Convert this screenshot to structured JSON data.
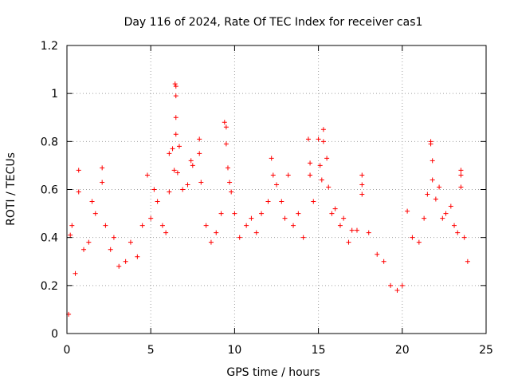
{
  "chart_data": {
    "type": "scatter",
    "title": "Day 116 of 2024, Rate Of TEC Index for receiver cas1",
    "xlabel": "GPS time / hours",
    "ylabel": "ROTI / TECUs",
    "xlim": [
      0,
      25
    ],
    "ylim": [
      0,
      1.2
    ],
    "xticks": [
      0,
      5,
      10,
      15,
      20,
      25
    ],
    "xtick_labels": [
      "0",
      "5",
      "10",
      "15",
      "20",
      "25"
    ],
    "yticks": [
      0,
      0.2,
      0.4,
      0.6,
      0.8,
      1,
      1.2
    ],
    "ytick_labels": [
      "0",
      "0.2",
      "0.4",
      "0.6",
      "0.8",
      "1",
      "1.2"
    ],
    "grid": true,
    "marker": "+",
    "marker_color": "#ff0000",
    "series": [
      {
        "name": "ROTI",
        "points": [
          [
            0.1,
            0.08
          ],
          [
            0.2,
            0.41
          ],
          [
            0.3,
            0.45
          ],
          [
            0.5,
            0.25
          ],
          [
            0.7,
            0.68
          ],
          [
            0.7,
            0.59
          ],
          [
            1.0,
            0.35
          ],
          [
            1.3,
            0.38
          ],
          [
            1.5,
            0.55
          ],
          [
            1.7,
            0.5
          ],
          [
            2.1,
            0.69
          ],
          [
            2.1,
            0.63
          ],
          [
            2.3,
            0.45
          ],
          [
            2.6,
            0.35
          ],
          [
            2.8,
            0.4
          ],
          [
            3.1,
            0.28
          ],
          [
            3.5,
            0.3
          ],
          [
            3.8,
            0.38
          ],
          [
            4.2,
            0.32
          ],
          [
            4.5,
            0.45
          ],
          [
            4.8,
            0.66
          ],
          [
            5.0,
            0.48
          ],
          [
            5.2,
            0.6
          ],
          [
            5.4,
            0.55
          ],
          [
            5.7,
            0.45
          ],
          [
            5.9,
            0.42
          ],
          [
            6.1,
            0.59
          ],
          [
            6.1,
            0.75
          ],
          [
            6.3,
            0.77
          ],
          [
            6.4,
            0.68
          ],
          [
            6.45,
            1.04
          ],
          [
            6.5,
            1.03
          ],
          [
            6.5,
            0.99
          ],
          [
            6.5,
            0.9
          ],
          [
            6.5,
            0.83
          ],
          [
            6.6,
            0.67
          ],
          [
            6.7,
            0.78
          ],
          [
            6.9,
            0.6
          ],
          [
            7.2,
            0.62
          ],
          [
            7.4,
            0.72
          ],
          [
            7.5,
            0.7
          ],
          [
            7.9,
            0.81
          ],
          [
            7.9,
            0.75
          ],
          [
            8.0,
            0.63
          ],
          [
            8.3,
            0.45
          ],
          [
            8.6,
            0.38
          ],
          [
            8.9,
            0.42
          ],
          [
            9.2,
            0.5
          ],
          [
            9.4,
            0.88
          ],
          [
            9.5,
            0.86
          ],
          [
            9.5,
            0.79
          ],
          [
            9.6,
            0.69
          ],
          [
            9.7,
            0.63
          ],
          [
            9.8,
            0.59
          ],
          [
            10.0,
            0.5
          ],
          [
            10.3,
            0.4
          ],
          [
            10.7,
            0.45
          ],
          [
            11.0,
            0.48
          ],
          [
            11.3,
            0.42
          ],
          [
            11.6,
            0.5
          ],
          [
            12.0,
            0.55
          ],
          [
            12.2,
            0.73
          ],
          [
            12.3,
            0.66
          ],
          [
            12.5,
            0.62
          ],
          [
            12.8,
            0.55
          ],
          [
            13.0,
            0.48
          ],
          [
            13.2,
            0.66
          ],
          [
            13.5,
            0.45
          ],
          [
            13.8,
            0.5
          ],
          [
            14.1,
            0.4
          ],
          [
            14.4,
            0.81
          ],
          [
            14.5,
            0.71
          ],
          [
            14.5,
            0.66
          ],
          [
            14.7,
            0.55
          ],
          [
            15.0,
            0.81
          ],
          [
            15.1,
            0.7
          ],
          [
            15.2,
            0.64
          ],
          [
            15.3,
            0.85
          ],
          [
            15.3,
            0.8
          ],
          [
            15.5,
            0.73
          ],
          [
            15.6,
            0.61
          ],
          [
            15.8,
            0.5
          ],
          [
            16.0,
            0.52
          ],
          [
            16.3,
            0.45
          ],
          [
            16.5,
            0.48
          ],
          [
            16.8,
            0.38
          ],
          [
            17.0,
            0.43
          ],
          [
            17.3,
            0.43
          ],
          [
            17.6,
            0.66
          ],
          [
            17.6,
            0.62
          ],
          [
            17.6,
            0.58
          ],
          [
            18.0,
            0.42
          ],
          [
            18.5,
            0.33
          ],
          [
            18.9,
            0.3
          ],
          [
            19.3,
            0.2
          ],
          [
            19.7,
            0.18
          ],
          [
            20.0,
            0.2
          ],
          [
            20.3,
            0.51
          ],
          [
            20.6,
            0.4
          ],
          [
            21.0,
            0.38
          ],
          [
            21.3,
            0.48
          ],
          [
            21.5,
            0.58
          ],
          [
            21.7,
            0.8
          ],
          [
            21.7,
            0.79
          ],
          [
            21.8,
            0.72
          ],
          [
            21.8,
            0.64
          ],
          [
            22.0,
            0.56
          ],
          [
            22.2,
            0.61
          ],
          [
            22.4,
            0.48
          ],
          [
            22.6,
            0.5
          ],
          [
            22.9,
            0.53
          ],
          [
            23.1,
            0.45
          ],
          [
            23.3,
            0.42
          ],
          [
            23.5,
            0.68
          ],
          [
            23.5,
            0.66
          ],
          [
            23.5,
            0.61
          ],
          [
            23.7,
            0.4
          ],
          [
            23.9,
            0.3
          ]
        ]
      }
    ]
  }
}
